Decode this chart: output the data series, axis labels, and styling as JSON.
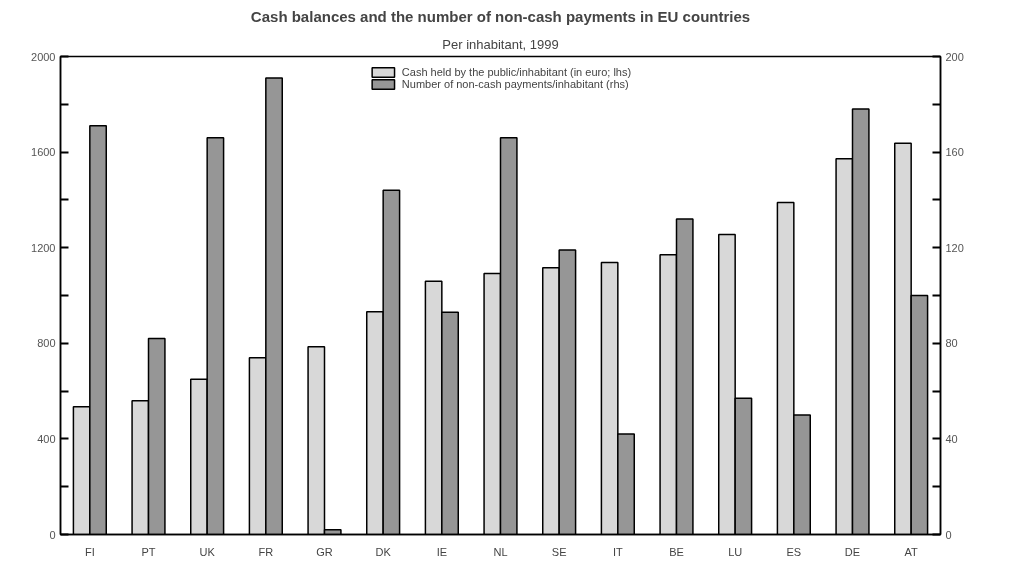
{
  "chart_data": {
    "type": "bar",
    "title": "Cash balances and the number of non-cash payments in EU countries",
    "subtitle": "Per inhabitant, 1999",
    "categories": [
      "FI",
      "PT",
      "UK",
      "FR",
      "GR",
      "DK",
      "IE",
      "NL",
      "SE",
      "IT",
      "BE",
      "LU",
      "ES",
      "DE",
      "AT"
    ],
    "series": [
      {
        "name": "Cash held by the public/inhabitant (in euro; lhs)",
        "color": "#d8d8d8",
        "values": [
          535,
          560,
          650,
          740,
          786,
          932,
          1060,
          1092,
          1116,
          1138,
          1170,
          1255,
          1389,
          1572,
          1637
        ]
      },
      {
        "name": "Number of non-cash payments/inhabitant (rhs)",
        "color": "#969696",
        "axis": "y2",
        "values": [
          171,
          82,
          166,
          191,
          2,
          144,
          93,
          166,
          119,
          42,
          132,
          57,
          50,
          178,
          100
        ]
      }
    ],
    "ylim": [
      0,
      2000
    ],
    "yticks": [
      0,
      {
        "value": 200,
        "label": null
      },
      400,
      {
        "value": 600,
        "label": null
      },
      800,
      {
        "value": 1000,
        "label": null
      },
      1200,
      {
        "value": 1400,
        "label": null
      },
      1600,
      {
        "value": 1800,
        "label": null
      },
      2000
    ],
    "y2lim": [
      0,
      200
    ],
    "y2ticks": [
      0,
      {
        "value": 20,
        "label": null
      },
      40,
      {
        "value": 60,
        "label": null
      },
      80,
      {
        "value": 100,
        "label": null
      },
      120,
      {
        "value": 140,
        "label": null
      },
      160,
      {
        "value": 180,
        "label": null
      },
      200
    ],
    "legend": "top",
    "grid": false
  }
}
